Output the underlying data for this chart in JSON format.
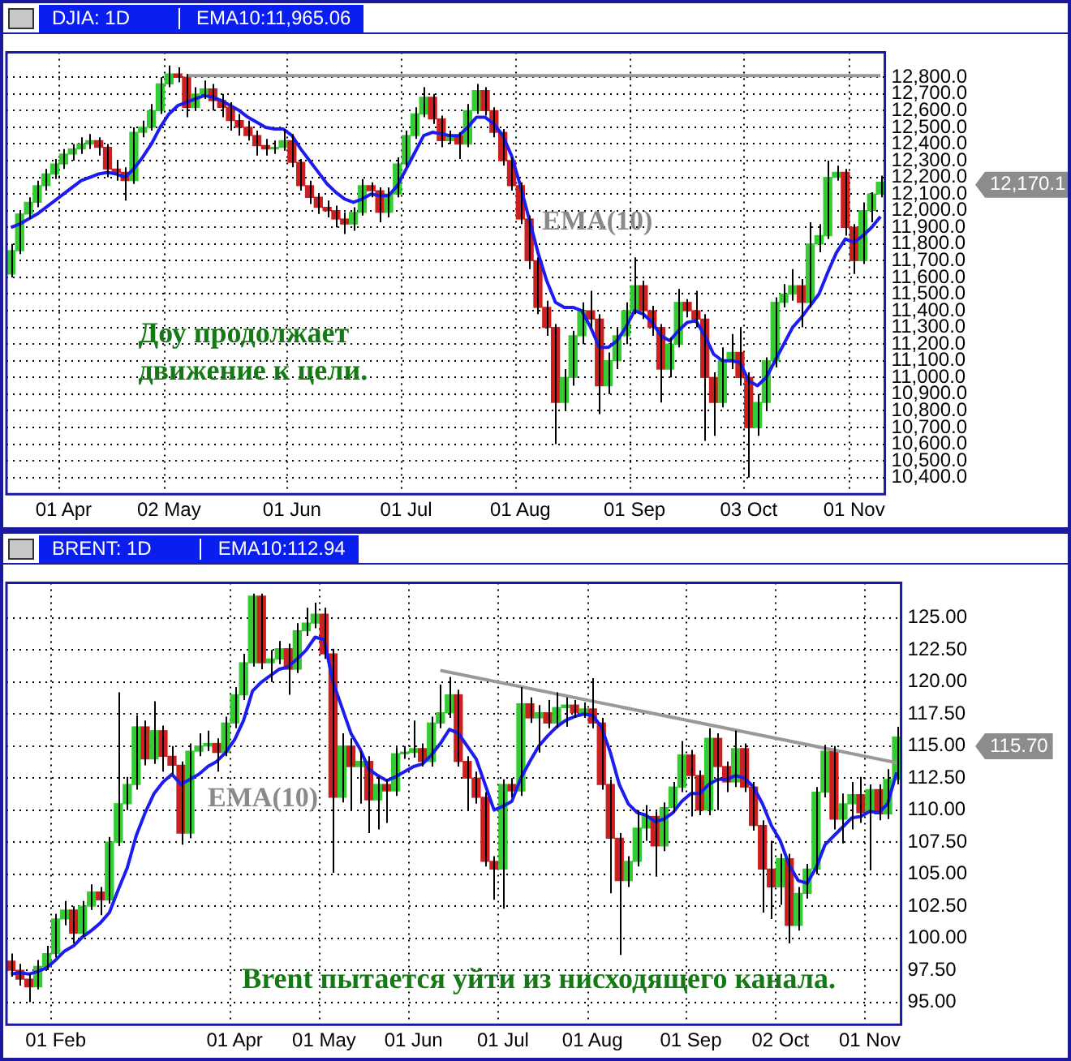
{
  "chart_data": [
    {
      "type": "candlestick",
      "title": "DJIA: 1D",
      "subtitle": "EMA10:11,965.06",
      "categories": [
        null,
        null,
        null,
        null,
        null,
        null,
        "01 Apr",
        null,
        null,
        null,
        null,
        null,
        null,
        null,
        null,
        null,
        null,
        null,
        "02 May",
        null,
        null,
        null,
        null,
        null,
        null,
        null,
        null,
        null,
        null,
        null,
        null,
        null,
        "01 Jun",
        null,
        null,
        null,
        null,
        null,
        null,
        null,
        null,
        null,
        null,
        null,
        null,
        "01 Jul",
        null,
        null,
        null,
        null,
        null,
        null,
        null,
        null,
        null,
        null,
        null,
        null,
        "01 Aug",
        null,
        null,
        null,
        null,
        null,
        null,
        null,
        null,
        null,
        null,
        null,
        null,
        "01 Sep",
        null,
        null,
        null,
        null,
        null,
        null,
        null,
        null,
        null,
        null,
        null,
        null,
        "03 Oct",
        null,
        null,
        null,
        null,
        null,
        null,
        null,
        null,
        null,
        null,
        null,
        "01 Nov",
        null,
        null,
        null
      ],
      "ohlc": [
        [
          11620,
          11800,
          11600,
          11760
        ],
        [
          11760,
          12000,
          11740,
          11980
        ],
        [
          11980,
          12080,
          11950,
          12050
        ],
        [
          12050,
          12180,
          12020,
          12150
        ],
        [
          12150,
          12250,
          12120,
          12220
        ],
        [
          12220,
          12310,
          12190,
          12280
        ],
        [
          12280,
          12370,
          12250,
          12340
        ],
        [
          12340,
          12400,
          12300,
          12370
        ],
        [
          12370,
          12440,
          12340,
          12400
        ],
        [
          12400,
          12460,
          12370,
          12420
        ],
        [
          12420,
          12440,
          12330,
          12380
        ],
        [
          12380,
          12400,
          12200,
          12250
        ],
        [
          12250,
          12300,
          12180,
          12230
        ],
        [
          12230,
          12260,
          12060,
          12180
        ],
        [
          12180,
          12500,
          12160,
          12470
        ],
        [
          12470,
          12540,
          12440,
          12500
        ],
        [
          12500,
          12640,
          12480,
          12600
        ],
        [
          12600,
          12800,
          12580,
          12760
        ],
        [
          12760,
          12870,
          12740,
          12820
        ],
        [
          12820,
          12860,
          12770,
          12800
        ],
        [
          12800,
          12820,
          12560,
          12620
        ],
        [
          12620,
          12740,
          12600,
          12700
        ],
        [
          12700,
          12780,
          12670,
          12730
        ],
        [
          12730,
          12760,
          12600,
          12660
        ],
        [
          12660,
          12700,
          12560,
          12620
        ],
        [
          12620,
          12650,
          12480,
          12540
        ],
        [
          12540,
          12580,
          12450,
          12500
        ],
        [
          12500,
          12540,
          12420,
          12450
        ],
        [
          12450,
          12480,
          12330,
          12390
        ],
        [
          12390,
          12430,
          12330,
          12370
        ],
        [
          12370,
          12420,
          12340,
          12380
        ],
        [
          12380,
          12490,
          12360,
          12420
        ],
        [
          12420,
          12460,
          12260,
          12290
        ],
        [
          12290,
          12310,
          12120,
          12150
        ],
        [
          12150,
          12180,
          12040,
          12080
        ],
        [
          12080,
          12100,
          11980,
          12020
        ],
        [
          12020,
          12060,
          11960,
          12000
        ],
        [
          12000,
          12030,
          11900,
          11950
        ],
        [
          11950,
          11990,
          11860,
          11920
        ],
        [
          11920,
          12020,
          11880,
          11990
        ],
        [
          11990,
          12190,
          11970,
          12150
        ],
        [
          12150,
          12170,
          12080,
          12120
        ],
        [
          12120,
          12140,
          11930,
          11990
        ],
        [
          11990,
          12140,
          11960,
          12100
        ],
        [
          12100,
          12320,
          12080,
          12280
        ],
        [
          12280,
          12480,
          12260,
          12450
        ],
        [
          12450,
          12620,
          12430,
          12580
        ],
        [
          12580,
          12740,
          12560,
          12680
        ],
        [
          12680,
          12700,
          12520,
          12550
        ],
        [
          12550,
          12570,
          12380,
          12420
        ],
        [
          12420,
          12480,
          12400,
          12450
        ],
        [
          12450,
          12470,
          12310,
          12400
        ],
        [
          12400,
          12640,
          12380,
          12600
        ],
        [
          12600,
          12760,
          12580,
          12720
        ],
        [
          12720,
          12740,
          12570,
          12600
        ],
        [
          12600,
          12620,
          12440,
          12470
        ],
        [
          12470,
          12490,
          12270,
          12300
        ],
        [
          12300,
          12320,
          12120,
          12150
        ],
        [
          12150,
          12170,
          11920,
          11950
        ],
        [
          11950,
          11970,
          11650,
          11700
        ],
        [
          11700,
          11720,
          11380,
          11420
        ],
        [
          11420,
          11460,
          11250,
          11300
        ],
        [
          11300,
          11320,
          10600,
          10850
        ],
        [
          10850,
          11050,
          10800,
          11000
        ],
        [
          11000,
          11280,
          10950,
          11250
        ],
        [
          11250,
          11450,
          11200,
          11400
        ],
        [
          11400,
          11520,
          11300,
          11350
        ],
        [
          11350,
          11380,
          10780,
          10950
        ],
        [
          10950,
          11150,
          10900,
          11100
        ],
        [
          11100,
          11300,
          11050,
          11250
        ],
        [
          11250,
          11450,
          11200,
          11400
        ],
        [
          11400,
          11720,
          11380,
          11550
        ],
        [
          11550,
          11580,
          11350,
          11400
        ],
        [
          11400,
          11430,
          11250,
          11300
        ],
        [
          11300,
          11320,
          10850,
          11050
        ],
        [
          11050,
          11240,
          11000,
          11200
        ],
        [
          11200,
          11530,
          11180,
          11450
        ],
        [
          11450,
          11470,
          11360,
          11400
        ],
        [
          11400,
          11520,
          11300,
          11350
        ],
        [
          11350,
          11380,
          10620,
          11000
        ],
        [
          11000,
          11030,
          10650,
          10850
        ],
        [
          10850,
          11180,
          10820,
          11100
        ],
        [
          11100,
          11260,
          11050,
          11150
        ],
        [
          11150,
          11300,
          10950,
          11000
        ],
        [
          11000,
          11030,
          10400,
          10700
        ],
        [
          10700,
          10900,
          10650,
          10850
        ],
        [
          10850,
          11120,
          10800,
          11100
        ],
        [
          11100,
          11480,
          11060,
          11450
        ],
        [
          11450,
          11560,
          11420,
          11500
        ],
        [
          11500,
          11650,
          11460,
          11550
        ],
        [
          11550,
          11590,
          11300,
          11450
        ],
        [
          11450,
          11930,
          11420,
          11800
        ],
        [
          11800,
          11920,
          11750,
          11850
        ],
        [
          11850,
          12300,
          11830,
          12200
        ],
        [
          12200,
          12270,
          12180,
          12230
        ],
        [
          12230,
          12250,
          11850,
          11900
        ],
        [
          11900,
          11920,
          11620,
          11700
        ],
        [
          11700,
          12050,
          11680,
          12000
        ],
        [
          12000,
          12110,
          11930,
          12100
        ],
        [
          12100,
          12210,
          12080,
          12170.1
        ]
      ],
      "colors": [
        "#33cc33",
        "#33cc33",
        "#33cc33",
        "#33cc33",
        "#33cc33",
        "#33cc33",
        "#33cc33",
        "#33cc33",
        "#33cc33",
        "#33cc33",
        "#cc2020",
        "#cc2020",
        "#cc2020",
        "#cc2020",
        "#33cc33",
        "#33cc33",
        "#33cc33",
        "#33cc33",
        "#33cc33",
        "#cc2020",
        "#cc2020",
        "#33cc33",
        "#33cc33",
        "#cc2020",
        "#cc2020",
        "#cc2020",
        "#cc2020",
        "#cc2020",
        "#cc2020",
        "#cc2020",
        "#33cc33",
        "#33cc33",
        "#cc2020",
        "#cc2020",
        "#cc2020",
        "#cc2020",
        "#cc2020",
        "#cc2020",
        "#cc2020",
        "#33cc33",
        "#33cc33",
        "#cc2020",
        "#cc2020",
        "#33cc33",
        "#33cc33",
        "#33cc33",
        "#33cc33",
        "#33cc33",
        "#cc2020",
        "#cc2020",
        "#33cc33",
        "#cc2020",
        "#33cc33",
        "#33cc33",
        "#cc2020",
        "#cc2020",
        "#cc2020",
        "#cc2020",
        "#cc2020",
        "#cc2020",
        "#cc2020",
        "#cc2020",
        "#cc2020",
        "#33cc33",
        "#33cc33",
        "#33cc33",
        "#cc2020",
        "#cc2020",
        "#33cc33",
        "#33cc33",
        "#33cc33",
        "#33cc33",
        "#cc2020",
        "#cc2020",
        "#cc2020",
        "#33cc33",
        "#33cc33",
        "#cc2020",
        "#cc2020",
        "#cc2020",
        "#cc2020",
        "#33cc33",
        "#33cc33",
        "#cc2020",
        "#cc2020",
        "#33cc33",
        "#33cc33",
        "#33cc33",
        "#33cc33",
        "#33cc33",
        "#cc2020",
        "#33cc33",
        "#33cc33",
        "#33cc33",
        "#33cc33",
        "#cc2020",
        "#cc2020",
        "#33cc33",
        "#33cc33",
        "#33cc33"
      ],
      "series": [
        {
          "type": "line",
          "name": "EMA(10)",
          "color": "#1c1cf0",
          "values": [
            11900,
            11920,
            11950,
            11980,
            12020,
            12060,
            12100,
            12140,
            12180,
            12200,
            12220,
            12230,
            12220,
            12200,
            12250,
            12320,
            12400,
            12500,
            12580,
            12630,
            12650,
            12670,
            12690,
            12680,
            12660,
            12630,
            12600,
            12560,
            12530,
            12500,
            12490,
            12490,
            12450,
            12370,
            12300,
            12230,
            12160,
            12110,
            12070,
            12050,
            12070,
            12100,
            12090,
            12090,
            12150,
            12250,
            12350,
            12450,
            12470,
            12460,
            12450,
            12450,
            12500,
            12560,
            12560,
            12520,
            12450,
            12330,
            12150,
            11950,
            11750,
            11580,
            11450,
            11420,
            11420,
            11400,
            11300,
            11180,
            11180,
            11220,
            11300,
            11400,
            11380,
            11330,
            11250,
            11220,
            11280,
            11330,
            11340,
            11250,
            11140,
            11100,
            11100,
            11090,
            10980,
            10950,
            11000,
            11100,
            11200,
            11300,
            11360,
            11430,
            11500,
            11630,
            11750,
            11830,
            11810,
            11850,
            11900,
            11965.06
          ]
        },
        {
          "type": "line",
          "color": "#999999",
          "values": [
            null,
            null,
            null,
            null,
            null,
            null,
            null,
            null,
            null,
            null,
            null,
            null,
            null,
            null,
            null,
            null,
            null,
            null,
            null,
            null,
            12810,
            null,
            null,
            null,
            null,
            null,
            null,
            null,
            null,
            null,
            null,
            null,
            null,
            null,
            null,
            null,
            null,
            null,
            null,
            null,
            null,
            null,
            null,
            null,
            null,
            null,
            null,
            null,
            null,
            null,
            null,
            null,
            null,
            null,
            null,
            null,
            null,
            null,
            null,
            null,
            null,
            null,
            null,
            null,
            null,
            null,
            null,
            null,
            null,
            null,
            null,
            null,
            null,
            null,
            null,
            null,
            null,
            null,
            null,
            null,
            null,
            null,
            null,
            null,
            null,
            null,
            null,
            null,
            null,
            null,
            null,
            null,
            null,
            null,
            null,
            null,
            null,
            null,
            null,
            12810
          ]
        }
      ],
      "ylim": [
        10300,
        12950
      ],
      "yticks": [
        {
          "value": 10400,
          "label": "10,400.0"
        },
        {
          "value": 10500,
          "label": "10,500.0"
        },
        {
          "value": 10600,
          "label": "10,600.0"
        },
        {
          "value": 10700,
          "label": "10,700.0"
        },
        {
          "value": 10800,
          "label": "10,800.0"
        },
        {
          "value": 10900,
          "label": "10,900.0"
        },
        {
          "value": 11000,
          "label": "11,000.0"
        },
        {
          "value": 11100,
          "label": "11,100.0"
        },
        {
          "value": 11200,
          "label": "11,200.0"
        },
        {
          "value": 11300,
          "label": "11,300.0"
        },
        {
          "value": 11400,
          "label": "11,400.0"
        },
        {
          "value": 11500,
          "label": "11,500.0"
        },
        {
          "value": 11600,
          "label": "11,600.0"
        },
        {
          "value": 11700,
          "label": "11,700.0"
        },
        {
          "value": 11800,
          "label": "11,800.0"
        },
        {
          "value": 11900,
          "label": "11,900.0"
        },
        {
          "value": 12000,
          "label": "12,000.0"
        },
        {
          "value": 12100,
          "label": "12,100.0"
        },
        {
          "value": 12200,
          "label": "12,200.0"
        },
        {
          "value": 12300,
          "label": "12,300.0"
        },
        {
          "value": 12400,
          "label": "12,400.0"
        },
        {
          "value": 12500,
          "label": "12,500.0"
        },
        {
          "value": 12600,
          "label": "12,600.0"
        },
        {
          "value": 12700,
          "label": "12,700.0"
        },
        {
          "value": 12800,
          "label": "12,800.0"
        }
      ],
      "grid": true,
      "marker": "none",
      "annotations": [
        "Доу продолжает\nдвижение к цели.",
        "12,170.1"
      ]
    },
    {
      "type": "candlestick",
      "title": "BRENT: 1D",
      "subtitle": "EMA10:112.94",
      "categories": [
        null,
        null,
        null,
        null,
        null,
        "01 Feb",
        null,
        null,
        null,
        null,
        null,
        null,
        null,
        null,
        null,
        null,
        null,
        null,
        null,
        null,
        null,
        null,
        null,
        null,
        null,
        "01 Apr",
        null,
        null,
        null,
        null,
        null,
        null,
        null,
        null,
        null,
        "01 May",
        null,
        null,
        null,
        null,
        null,
        null,
        null,
        null,
        null,
        "01 Jun",
        null,
        null,
        null,
        null,
        null,
        null,
        null,
        null,
        null,
        "01 Jul",
        null,
        null,
        null,
        null,
        null,
        null,
        null,
        null,
        null,
        "01 Aug",
        null,
        null,
        null,
        null,
        null,
        null,
        null,
        null,
        null,
        null,
        "01 Sep",
        null,
        null,
        null,
        null,
        null,
        null,
        null,
        null,
        null,
        "02 Oct",
        null,
        null,
        null,
        null,
        null,
        null,
        null,
        null,
        null,
        "01 Nov",
        null,
        null,
        null
      ],
      "ohlc": [
        [
          98.2,
          98.8,
          97.0,
          97.5
        ],
        [
          97.5,
          98.0,
          96.3,
          96.8
        ],
        [
          96.8,
          97.2,
          95.0,
          96.2
        ],
        [
          96.2,
          98.3,
          96.0,
          97.8
        ],
        [
          97.8,
          99.4,
          97.5,
          98.8
        ],
        [
          98.8,
          101.9,
          98.5,
          101.5
        ],
        [
          101.5,
          102.9,
          101.0,
          102.2
        ],
        [
          102.2,
          102.5,
          99.6,
          100.4
        ],
        [
          100.4,
          102.9,
          100.1,
          102.5
        ],
        [
          102.5,
          104.2,
          102.2,
          103.6
        ],
        [
          103.6,
          104.0,
          101.8,
          103.0
        ],
        [
          103.0,
          107.9,
          102.7,
          107.5
        ],
        [
          107.5,
          119.2,
          107.2,
          110.5
        ],
        [
          110.5,
          112.6,
          110.0,
          112.0
        ],
        [
          112.0,
          117.4,
          111.6,
          116.5
        ],
        [
          116.5,
          117.0,
          113.5,
          114.0
        ],
        [
          114.0,
          118.5,
          113.6,
          116.2
        ],
        [
          116.2,
          116.6,
          113.0,
          114.2
        ],
        [
          114.2,
          115.0,
          112.8,
          113.5
        ],
        [
          113.5,
          113.8,
          107.3,
          108.2
        ],
        [
          108.2,
          115.2,
          107.8,
          114.6
        ],
        [
          114.6,
          116.0,
          114.2,
          115.0
        ],
        [
          115.0,
          116.2,
          114.6,
          115.2
        ],
        [
          115.2,
          115.6,
          113.0,
          114.5
        ],
        [
          114.5,
          117.3,
          114.2,
          116.8
        ],
        [
          116.8,
          119.6,
          116.4,
          119.0
        ],
        [
          119.0,
          122.2,
          118.6,
          121.5
        ],
        [
          121.5,
          126.9,
          121.2,
          126.7
        ],
        [
          126.7,
          126.9,
          121.0,
          121.5
        ],
        [
          121.5,
          122.5,
          120.0,
          121.8
        ],
        [
          121.8,
          123.2,
          121.4,
          122.6
        ],
        [
          122.6,
          123.0,
          119.0,
          121.0
        ],
        [
          121.0,
          124.6,
          120.7,
          124.0
        ],
        [
          124.0,
          125.8,
          123.6,
          124.6
        ],
        [
          124.6,
          126.2,
          124.2,
          125.3
        ],
        [
          125.3,
          125.8,
          121.8,
          122.2
        ],
        [
          122.2,
          122.6,
          105.1,
          111.0
        ],
        [
          111.0,
          116.0,
          110.6,
          115.0
        ],
        [
          115.0,
          115.6,
          110.0,
          113.4
        ],
        [
          113.4,
          114.6,
          110.5,
          113.8
        ],
        [
          113.8,
          114.2,
          108.2,
          110.8
        ],
        [
          110.8,
          112.6,
          108.5,
          112.0
        ],
        [
          112.0,
          112.4,
          109.0,
          111.5
        ],
        [
          111.5,
          114.9,
          111.1,
          114.4
        ],
        [
          114.4,
          115.0,
          114.0,
          114.5
        ],
        [
          114.5,
          117.0,
          114.1,
          114.8
        ],
        [
          114.8,
          115.2,
          113.4,
          113.8
        ],
        [
          113.8,
          117.3,
          113.4,
          116.8
        ],
        [
          116.8,
          119.8,
          116.4,
          117.6
        ],
        [
          117.6,
          120.4,
          117.2,
          119.0
        ],
        [
          119.0,
          119.4,
          113.4,
          113.8
        ],
        [
          113.8,
          114.2,
          110.0,
          112.5
        ],
        [
          112.5,
          113.0,
          110.5,
          111.0
        ],
        [
          111.0,
          111.4,
          105.6,
          106.0
        ],
        [
          106.0,
          106.4,
          103.0,
          105.4
        ],
        [
          105.4,
          112.4,
          102.3,
          112.0
        ],
        [
          112.0,
          112.5,
          111.0,
          111.5
        ],
        [
          111.5,
          119.6,
          111.1,
          118.3
        ],
        [
          118.3,
          118.8,
          116.8,
          117.2
        ],
        [
          117.2,
          118.2,
          114.5,
          117.6
        ],
        [
          117.6,
          118.6,
          116.4,
          116.8
        ],
        [
          116.8,
          119.2,
          116.4,
          118.0
        ],
        [
          118.0,
          118.8,
          116.5,
          118.2
        ],
        [
          118.2,
          118.6,
          117.2,
          117.6
        ],
        [
          117.6,
          118.4,
          117.2,
          117.9
        ],
        [
          117.9,
          120.3,
          116.4,
          116.8
        ],
        [
          116.8,
          117.2,
          111.6,
          112.0
        ],
        [
          112.0,
          112.4,
          103.5,
          107.8
        ],
        [
          107.8,
          108.2,
          98.7,
          104.5
        ],
        [
          104.5,
          106.4,
          104.0,
          106.0
        ],
        [
          106.0,
          110.0,
          105.6,
          108.6
        ],
        [
          108.6,
          110.4,
          107.6,
          109.5
        ],
        [
          109.5,
          109.9,
          104.8,
          107.2
        ],
        [
          107.2,
          110.6,
          106.8,
          110.2
        ],
        [
          110.2,
          112.2,
          109.8,
          111.8
        ],
        [
          111.8,
          115.4,
          111.4,
          114.3
        ],
        [
          114.3,
          114.7,
          109.5,
          112.7
        ],
        [
          112.7,
          113.1,
          109.6,
          110.0
        ],
        [
          110.0,
          116.4,
          109.6,
          115.6
        ],
        [
          115.6,
          116.0,
          110.0,
          113.4
        ],
        [
          113.4,
          113.8,
          111.4,
          112.2
        ],
        [
          112.2,
          116.2,
          111.8,
          114.8
        ],
        [
          114.8,
          115.2,
          111.4,
          111.8
        ],
        [
          111.8,
          112.2,
          108.4,
          108.8
        ],
        [
          108.8,
          109.2,
          102.0,
          105.4
        ],
        [
          105.4,
          107.6,
          101.5,
          104.0
        ],
        [
          104.0,
          106.6,
          102.6,
          106.2
        ],
        [
          106.2,
          106.6,
          99.6,
          101.0
        ],
        [
          101.0,
          104.0,
          100.6,
          103.5
        ],
        [
          103.5,
          105.8,
          103.1,
          105.4
        ],
        [
          105.4,
          111.8,
          105.0,
          111.4
        ],
        [
          111.4,
          115.1,
          111.0,
          114.6
        ],
        [
          114.6,
          115.0,
          108.5,
          109.3
        ],
        [
          109.3,
          111.3,
          107.4,
          110.5
        ],
        [
          110.5,
          112.2,
          108.5,
          111.2
        ],
        [
          111.2,
          112.6,
          109.0,
          109.8
        ],
        [
          109.8,
          112.0,
          105.3,
          111.6
        ],
        [
          111.6,
          112.0,
          109.2,
          109.7
        ],
        [
          109.7,
          113.2,
          109.3,
          112.4
        ],
        [
          112.4,
          116.5,
          112.0,
          115.7
        ]
      ],
      "colors": [
        "#cc2020",
        "#cc2020",
        "#cc2020",
        "#33cc33",
        "#33cc33",
        "#33cc33",
        "#33cc33",
        "#cc2020",
        "#33cc33",
        "#33cc33",
        "#cc2020",
        "#33cc33",
        "#33cc33",
        "#33cc33",
        "#33cc33",
        "#cc2020",
        "#33cc33",
        "#cc2020",
        "#cc2020",
        "#cc2020",
        "#33cc33",
        "#33cc33",
        "#33cc33",
        "#cc2020",
        "#33cc33",
        "#33cc33",
        "#33cc33",
        "#33cc33",
        "#cc2020",
        "#33cc33",
        "#33cc33",
        "#cc2020",
        "#33cc33",
        "#33cc33",
        "#33cc33",
        "#cc2020",
        "#cc2020",
        "#33cc33",
        "#cc2020",
        "#33cc33",
        "#cc2020",
        "#33cc33",
        "#cc2020",
        "#33cc33",
        "#33cc33",
        "#33cc33",
        "#cc2020",
        "#33cc33",
        "#33cc33",
        "#33cc33",
        "#cc2020",
        "#cc2020",
        "#cc2020",
        "#cc2020",
        "#cc2020",
        "#33cc33",
        "#cc2020",
        "#33cc33",
        "#cc2020",
        "#33cc33",
        "#cc2020",
        "#33cc33",
        "#33cc33",
        "#cc2020",
        "#33cc33",
        "#cc2020",
        "#cc2020",
        "#cc2020",
        "#cc2020",
        "#33cc33",
        "#33cc33",
        "#33cc33",
        "#cc2020",
        "#33cc33",
        "#33cc33",
        "#33cc33",
        "#cc2020",
        "#cc2020",
        "#33cc33",
        "#cc2020",
        "#cc2020",
        "#33cc33",
        "#cc2020",
        "#cc2020",
        "#cc2020",
        "#cc2020",
        "#33cc33",
        "#cc2020",
        "#33cc33",
        "#33cc33",
        "#33cc33",
        "#33cc33",
        "#cc2020",
        "#33cc33",
        "#33cc33",
        "#cc2020",
        "#33cc33",
        "#cc2020",
        "#33cc33",
        "#33cc33"
      ],
      "series": [
        {
          "type": "line",
          "name": "EMA(10)",
          "color": "#1c1cf0",
          "values": [
            97.2,
            97.3,
            97.2,
            97.4,
            97.7,
            98.3,
            99.0,
            99.4,
            100.1,
            100.6,
            101.2,
            102.0,
            103.8,
            105.5,
            108.0,
            109.8,
            111.3,
            112.2,
            112.8,
            112.0,
            112.4,
            112.8,
            113.4,
            113.8,
            114.5,
            115.5,
            117.0,
            119.3,
            120.0,
            120.5,
            121.0,
            121.2,
            121.8,
            122.5,
            123.5,
            123.3,
            120.0,
            118.0,
            116.0,
            114.8,
            113.2,
            112.7,
            112.3,
            112.6,
            113.0,
            113.4,
            113.6,
            114.3,
            115.2,
            116.3,
            116.0,
            115.0,
            114.0,
            112.0,
            110.0,
            110.3,
            110.7,
            112.5,
            113.8,
            115.0,
            115.8,
            116.5,
            117.0,
            117.3,
            117.5,
            117.4,
            116.5,
            114.5,
            112.0,
            110.5,
            109.8,
            109.6,
            109.1,
            109.3,
            109.8,
            110.7,
            111.3,
            111.3,
            112.0,
            112.4,
            112.4,
            112.7,
            112.5,
            111.8,
            110.5,
            108.8,
            107.6,
            105.7,
            104.5,
            104.3,
            105.5,
            107.3,
            108.0,
            108.7,
            109.4,
            109.5,
            109.9,
            109.8,
            110.5,
            112.94
          ]
        },
        {
          "type": "line",
          "color": "#999999",
          "values": [
            null,
            null,
            null,
            null,
            null,
            null,
            null,
            null,
            null,
            null,
            null,
            null,
            null,
            null,
            null,
            null,
            null,
            null,
            null,
            null,
            null,
            null,
            null,
            null,
            null,
            null,
            null,
            null,
            null,
            null,
            null,
            null,
            null,
            null,
            null,
            null,
            null,
            null,
            null,
            null,
            null,
            null,
            null,
            null,
            null,
            null,
            null,
            null,
            120.9,
            null,
            null,
            null,
            null,
            null,
            null,
            null,
            null,
            null,
            null,
            null,
            null,
            null,
            null,
            null,
            null,
            null,
            null,
            null,
            null,
            null,
            null,
            null,
            null,
            null,
            null,
            null,
            null,
            null,
            null,
            null,
            null,
            null,
            null,
            null,
            null,
            null,
            null,
            null,
            null,
            null,
            null,
            null,
            null,
            null,
            null,
            null,
            null,
            null,
            null,
            113.7
          ]
        }
      ],
      "ylim": [
        93.25,
        127.75
      ],
      "yticks": [
        {
          "value": 95,
          "label": "95.00"
        },
        {
          "value": 97.5,
          "label": "97.50"
        },
        {
          "value": 100,
          "label": "100.00"
        },
        {
          "value": 102.5,
          "label": "102.50"
        },
        {
          "value": 105,
          "label": "105.00"
        },
        {
          "value": 107.5,
          "label": "107.50"
        },
        {
          "value": 110,
          "label": "110.00"
        },
        {
          "value": 112.5,
          "label": "112.50"
        },
        {
          "value": 115,
          "label": "115.00"
        },
        {
          "value": 117.5,
          "label": "117.50"
        },
        {
          "value": 120,
          "label": "120.00"
        },
        {
          "value": 122.5,
          "label": "122.50"
        },
        {
          "value": 125,
          "label": "125.00"
        }
      ],
      "grid": true,
      "marker": "none",
      "annotations": [
        "Brent пытается уйти из нисходящего канала.",
        "115.70"
      ]
    }
  ]
}
